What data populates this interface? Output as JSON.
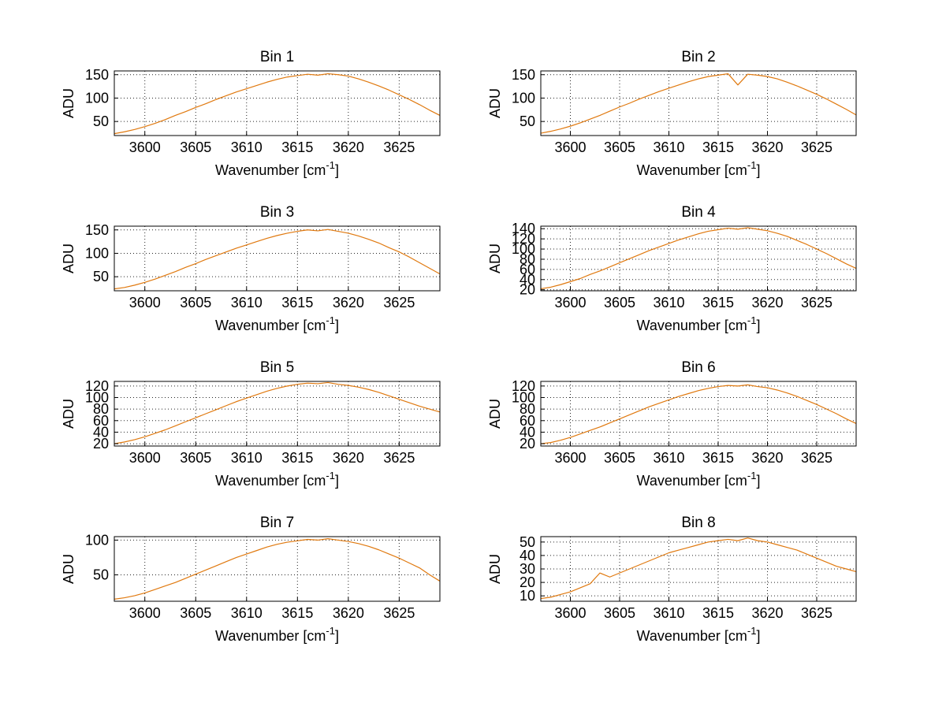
{
  "figure": {
    "background": "#ffffff",
    "line_color": "#e0790f",
    "grid_color": "#000000",
    "text_color": "#000000"
  },
  "axes_common": {
    "ylabel": "ADU",
    "xlabel_prefix": "Wavenumber [cm",
    "xlabel_sup": "-1",
    "xlabel_suffix": "]",
    "xlim": [
      3597,
      3629
    ],
    "xticks": [
      3600,
      3605,
      3610,
      3615,
      3620,
      3625
    ],
    "x_start": 3597,
    "x_step": 1,
    "grid": true,
    "legend": "none"
  },
  "chart_data": [
    {
      "type": "line",
      "title": "Bin 1",
      "ylim": [
        20,
        158
      ],
      "yticks": [
        50,
        100,
        150
      ],
      "values": [
        24,
        28,
        33,
        39,
        46,
        54,
        63,
        71,
        80,
        88,
        97,
        105,
        113,
        120,
        127,
        134,
        140,
        145,
        148,
        151,
        149,
        152,
        150,
        147,
        141,
        134,
        126,
        117,
        107,
        97,
        86,
        74,
        63
      ]
    },
    {
      "type": "line",
      "title": "Bin 2",
      "ylim": [
        20,
        158
      ],
      "yticks": [
        50,
        100,
        150
      ],
      "values": [
        25,
        29,
        34,
        40,
        47,
        55,
        63,
        72,
        81,
        89,
        98,
        106,
        114,
        121,
        128,
        135,
        141,
        146,
        149,
        152,
        128,
        151,
        149,
        146,
        141,
        134,
        126,
        117,
        108,
        98,
        87,
        76,
        64
      ]
    },
    {
      "type": "line",
      "title": "Bin 3",
      "ylim": [
        20,
        158
      ],
      "yticks": [
        50,
        100,
        150
      ],
      "values": [
        24,
        27,
        32,
        38,
        45,
        53,
        61,
        70,
        78,
        87,
        95,
        103,
        111,
        118,
        125,
        132,
        138,
        143,
        147,
        150,
        148,
        151,
        147,
        143,
        137,
        130,
        122,
        112,
        103,
        92,
        80,
        68,
        56
      ]
    },
    {
      "type": "line",
      "title": "Bin 4",
      "ylim": [
        18,
        145
      ],
      "yticks": [
        20,
        40,
        60,
        80,
        100,
        120,
        140
      ],
      "values": [
        22,
        25,
        30,
        36,
        42,
        50,
        57,
        65,
        73,
        81,
        89,
        97,
        104,
        111,
        118,
        124,
        130,
        135,
        138,
        141,
        139,
        142,
        139,
        136,
        131,
        125,
        117,
        109,
        100,
        91,
        81,
        71,
        62
      ]
    },
    {
      "type": "line",
      "title": "Bin 5",
      "ylim": [
        16,
        128
      ],
      "yticks": [
        20,
        40,
        60,
        80,
        100,
        120
      ],
      "values": [
        20,
        23,
        27,
        32,
        38,
        44,
        51,
        58,
        65,
        72,
        79,
        86,
        93,
        99,
        105,
        111,
        116,
        120,
        123,
        125,
        124,
        126,
        123,
        121,
        118,
        114,
        109,
        103,
        97,
        91,
        85,
        80,
        75
      ]
    },
    {
      "type": "line",
      "title": "Bin 6",
      "ylim": [
        16,
        128
      ],
      "yticks": [
        20,
        40,
        60,
        80,
        100,
        120
      ],
      "values": [
        20,
        22,
        26,
        31,
        37,
        43,
        49,
        56,
        63,
        70,
        77,
        84,
        90,
        96,
        102,
        107,
        112,
        116,
        119,
        121,
        120,
        122,
        119,
        117,
        113,
        108,
        102,
        95,
        88,
        80,
        72,
        63,
        55
      ]
    },
    {
      "type": "line",
      "title": "Bin 7",
      "ylim": [
        12,
        105
      ],
      "yticks": [
        50,
        100
      ],
      "values": [
        15,
        17,
        20,
        24,
        29,
        34,
        39,
        45,
        51,
        57,
        63,
        69,
        75,
        80,
        85,
        90,
        94,
        97,
        99,
        101,
        100,
        102,
        100,
        98,
        95,
        91,
        86,
        80,
        74,
        67,
        60,
        50,
        41
      ]
    },
    {
      "type": "line",
      "title": "Bin 8",
      "ylim": [
        6,
        54
      ],
      "yticks": [
        10,
        20,
        30,
        40,
        50
      ],
      "values": [
        8,
        9,
        11,
        13,
        16,
        19,
        27,
        24,
        27,
        30,
        33,
        36,
        39,
        42,
        44,
        46,
        48,
        50,
        51,
        52,
        51,
        53,
        51,
        50,
        48,
        46,
        44,
        41,
        38,
        35,
        32,
        30,
        28
      ]
    }
  ]
}
